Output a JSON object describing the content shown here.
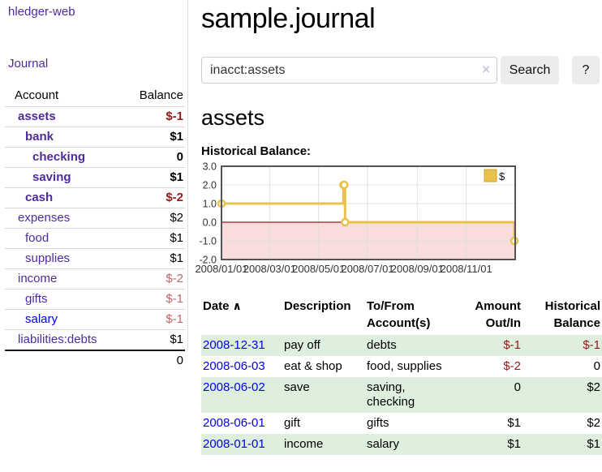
{
  "app": {
    "title": "hledger-web"
  },
  "sidebar": {
    "journal_link": "Journal",
    "accounts_table": {
      "account_header": "Account",
      "balance_header": "Balance",
      "rows": [
        {
          "name": "assets",
          "depth": 0,
          "bold": true,
          "neg": true,
          "balance": "$-1",
          "link_color": "purple"
        },
        {
          "name": "bank",
          "depth": 1,
          "bold": true,
          "neg": false,
          "balance": "$1",
          "link_color": "purple"
        },
        {
          "name": "checking",
          "depth": 2,
          "bold": true,
          "neg": false,
          "balance": "0",
          "link_color": "purple"
        },
        {
          "name": "saving",
          "depth": 2,
          "bold": true,
          "neg": false,
          "balance": "$1",
          "link_color": "purple"
        },
        {
          "name": "cash",
          "depth": 1,
          "bold": true,
          "neg": true,
          "balance": "$-2",
          "link_color": "purple"
        },
        {
          "name": "expenses",
          "depth": 0,
          "bold": false,
          "neg": false,
          "balance": "$2",
          "link_color": "purple"
        },
        {
          "name": "food",
          "depth": 1,
          "bold": false,
          "neg": false,
          "balance": "$1",
          "link_color": "purple"
        },
        {
          "name": "supplies",
          "depth": 1,
          "bold": false,
          "neg": false,
          "balance": "$1",
          "link_color": "purple"
        },
        {
          "name": "income",
          "depth": 0,
          "bold": false,
          "neg": true,
          "balance": "$-2",
          "link_color": "purple"
        },
        {
          "name": "gifts",
          "depth": 1,
          "bold": false,
          "neg": true,
          "balance": "$-1",
          "link_color": "purple"
        },
        {
          "name": "salary",
          "depth": 1,
          "bold": false,
          "neg": true,
          "balance": "$-1",
          "link_color": "blue"
        },
        {
          "name": "liabilities:debts",
          "depth": 0,
          "bold": false,
          "neg": false,
          "balance": "$1",
          "link_color": "purple"
        }
      ],
      "total": "0"
    }
  },
  "header": {
    "title": "sample.journal"
  },
  "search": {
    "value": "inacct:assets",
    "clear_icon": "×",
    "button_label": "Search",
    "help_label": "?"
  },
  "account_page": {
    "heading": "assets",
    "chart_label": "Historical Balance:"
  },
  "chart_data": {
    "type": "line",
    "style": "steps",
    "title": "Historical Balance",
    "series": [
      {
        "name": "$",
        "color": "#e8c24a",
        "points": [
          [
            "2008-01-01",
            1
          ],
          [
            "2008-06-01",
            2
          ],
          [
            "2008-06-02",
            2
          ],
          [
            "2008-06-03",
            0
          ],
          [
            "2008-12-31",
            -1
          ]
        ]
      }
    ],
    "xlim": [
      "2008-01-01",
      "2009-01-01"
    ],
    "ylim": [
      -2,
      3
    ],
    "y_ticks": [
      "3.0",
      "2.0",
      "1.0",
      "0.0",
      "-1.0",
      "-2.0"
    ],
    "x_ticks": [
      "2008/01/01",
      "2008/03/01",
      "2008/05/01",
      "2008/07/01",
      "2008/09/01",
      "2008/11/01"
    ],
    "legend": {
      "label": "$",
      "position": "top-right"
    },
    "grid": true,
    "negative_region_color": "#f9dddd",
    "zero_line_color": "#8c1e1e",
    "border_color": "#545454",
    "grid_color": "#dedede"
  },
  "register_table": {
    "headers": {
      "date": "Date",
      "sort_icon": "∧",
      "description": "Description",
      "tofrom_line1": "To/From",
      "tofrom_line2": "Account(s)",
      "amount_line1": "Amount",
      "amount_line2": "Out/In",
      "historical_line1": "Historical",
      "historical_line2": "Balance"
    },
    "rows": [
      {
        "date": "2008-12-31",
        "description": "pay off",
        "accounts": "debts",
        "amount": "$-1",
        "amount_neg": true,
        "balance": "$-1",
        "balance_neg": true
      },
      {
        "date": "2008-06-03",
        "description": "eat & shop",
        "accounts": "food, supplies",
        "amount": "$-2",
        "amount_neg": true,
        "balance": "0",
        "balance_neg": false
      },
      {
        "date": "2008-06-02",
        "description": "save",
        "accounts": "saving,\nchecking",
        "amount": "0",
        "amount_neg": false,
        "balance": "$2",
        "balance_neg": false
      },
      {
        "date": "2008-06-01",
        "description": "gift",
        "accounts": "gifts",
        "amount": "$1",
        "amount_neg": false,
        "balance": "$2",
        "balance_neg": false
      },
      {
        "date": "2008-01-01",
        "description": "income",
        "accounts": "salary",
        "amount": "$1",
        "amount_neg": false,
        "balance": "$1",
        "balance_neg": false
      }
    ]
  }
}
